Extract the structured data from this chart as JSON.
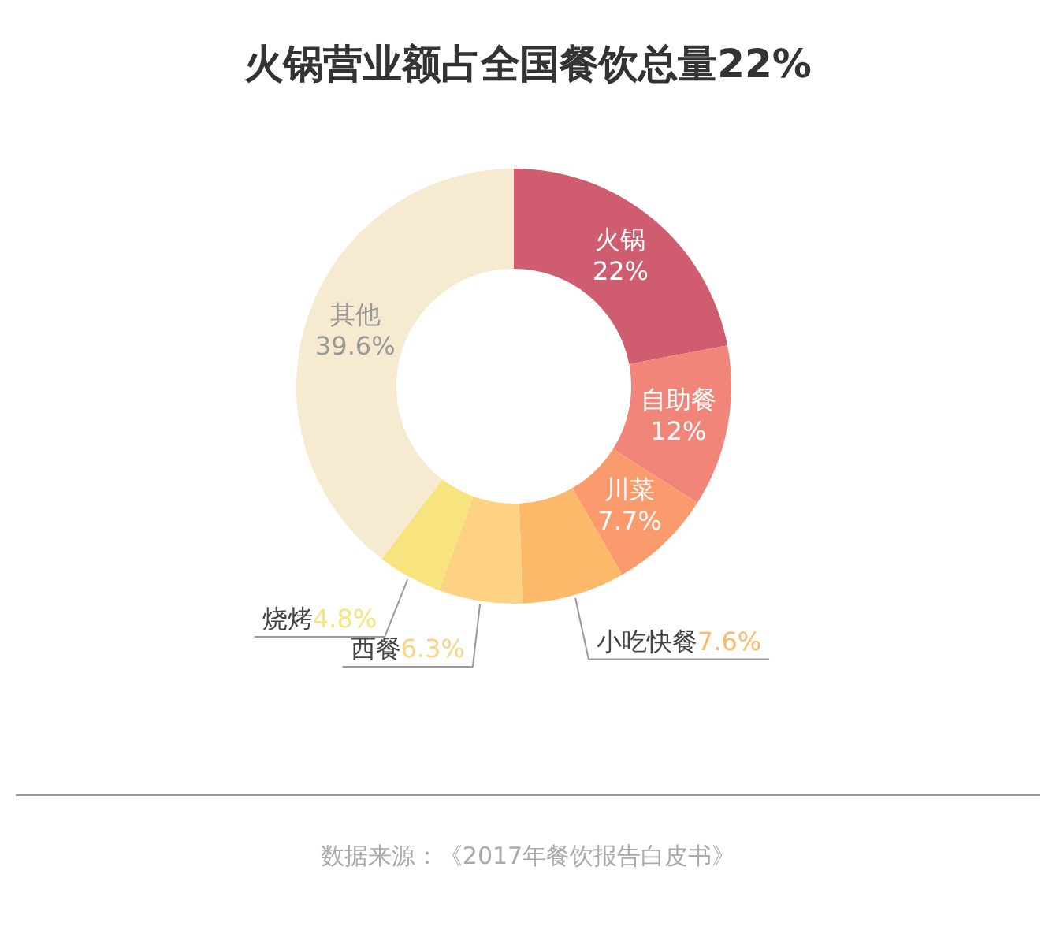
{
  "chart_data": {
    "type": "donut",
    "title": "火锅营业额占全国餐饮总量22%",
    "categories": [
      "火锅",
      "自助餐",
      "川菜",
      "小吃快餐",
      "西餐",
      "烧烤",
      "其他"
    ],
    "values": [
      22,
      12,
      7.7,
      7.6,
      6.3,
      4.8,
      39.6
    ],
    "value_labels": [
      "22%",
      "12%",
      "7.7%",
      "7.6%",
      "6.3%",
      "4.8%",
      "39.6%"
    ],
    "colors": [
      "#d05c6f",
      "#f2857a",
      "#fb9a6c",
      "#fdb96a",
      "#fdd283",
      "#f8e47e",
      "#f6ead1"
    ],
    "legend": false,
    "annotations": [
      "数据来源：《2017年餐饮报告白皮书》"
    ]
  }
}
